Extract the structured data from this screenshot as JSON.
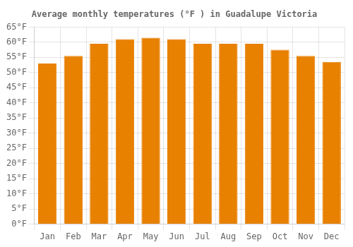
{
  "chart_data": {
    "type": "bar",
    "title": "Average monthly temperatures (°F ) in Guadalupe Victoria",
    "categories": [
      "Jan",
      "Feb",
      "Mar",
      "Apr",
      "May",
      "Jun",
      "Jul",
      "Aug",
      "Sep",
      "Oct",
      "Nov",
      "Dec"
    ],
    "values": [
      53,
      55.5,
      59.5,
      61,
      61.5,
      61,
      59.5,
      59.5,
      59.5,
      57.5,
      55.5,
      53.5
    ],
    "color": "#E88000",
    "ylim": [
      0,
      65
    ],
    "yticks": [
      {
        "value": 0,
        "label": "0°F"
      },
      {
        "value": 5,
        "label": "5°F"
      },
      {
        "value": 10,
        "label": "10°F"
      },
      {
        "value": 15,
        "label": "15°F"
      },
      {
        "value": 20,
        "label": "20°F"
      },
      {
        "value": 25,
        "label": "25°F"
      },
      {
        "value": 30,
        "label": "30°F"
      },
      {
        "value": 35,
        "label": "35°F"
      },
      {
        "value": 40,
        "label": "40°F"
      },
      {
        "value": 45,
        "label": "45°F"
      },
      {
        "value": 50,
        "label": "50°F"
      },
      {
        "value": 55,
        "label": "55°F"
      },
      {
        "value": 60,
        "label": "60°F"
      },
      {
        "value": 65,
        "label": "65°F"
      }
    ],
    "grid": true
  }
}
